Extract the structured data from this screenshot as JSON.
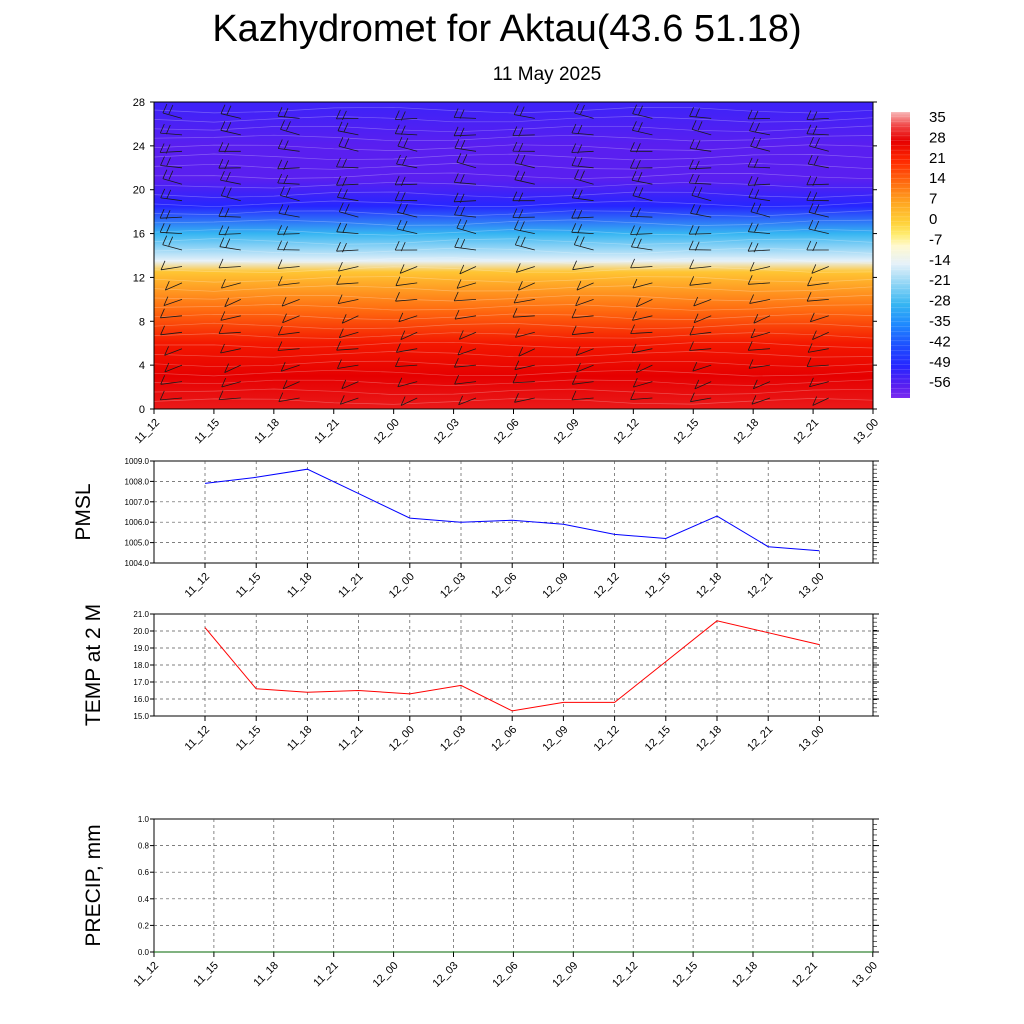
{
  "title": "Kazhydromet for Aktau(43.6 51.18)",
  "subtitle": "11 May 2025",
  "time_labels": [
    "11_12",
    "11_15",
    "11_18",
    "11_21",
    "12_00",
    "12_03",
    "12_06",
    "12_09",
    "12_12",
    "12_15",
    "12_18",
    "12_21",
    "13_00"
  ],
  "chart_data": [
    {
      "id": "cross-section",
      "type": "heatmap",
      "title": "Kazhydromet for Aktau(43.6 51.18)",
      "subtitle": "11 May 2025",
      "x": [
        "11_12",
        "11_15",
        "11_18",
        "11_21",
        "12_00",
        "12_03",
        "12_06",
        "12_09",
        "12_12",
        "12_15",
        "12_18",
        "12_21",
        "13_00"
      ],
      "ylim": [
        0,
        28
      ],
      "yticks": [
        0,
        4,
        8,
        12,
        16,
        20,
        24,
        28
      ],
      "colorbar_labels": [
        "35",
        "28",
        "21",
        "14",
        "7",
        "0",
        "-7",
        "-14",
        "-21",
        "-28",
        "-35",
        "-42",
        "-49",
        "-56"
      ],
      "colorbar_range": [
        -60,
        38
      ],
      "temperature_by_level": [
        {
          "level": 0,
          "value": 30
        },
        {
          "level": 3,
          "value": 28
        },
        {
          "level": 6,
          "value": 24
        },
        {
          "level": 9,
          "value": 14
        },
        {
          "level": 12.5,
          "value": 2
        },
        {
          "level": 13.5,
          "value": -14
        },
        {
          "level": 16,
          "value": -28
        },
        {
          "level": 18.5,
          "value": -49
        },
        {
          "level": 21,
          "value": -56
        },
        {
          "level": 24,
          "value": -56
        },
        {
          "level": 28,
          "value": -52
        }
      ],
      "overlay": "wind barbs",
      "grid": false
    },
    {
      "id": "pmsl",
      "type": "line",
      "ylabel": "PMSL",
      "categories": [
        "11_12",
        "11_15",
        "11_18",
        "11_21",
        "12_00",
        "12_03",
        "12_06",
        "12_09",
        "12_12",
        "12_15",
        "12_18",
        "12_21",
        "13_00"
      ],
      "values": [
        1007.9,
        1008.2,
        1008.6,
        1007.4,
        1006.2,
        1006.0,
        1006.1,
        1005.9,
        1005.4,
        1005.2,
        1006.3,
        1004.8,
        1004.6
      ],
      "ylim": [
        1004.0,
        1009.0
      ],
      "yticks": [
        "1004.0",
        "1005.0",
        "1006.0",
        "1007.0",
        "1008.0",
        "1009.0"
      ],
      "color": "#0000ff",
      "grid": true
    },
    {
      "id": "temp2m",
      "type": "line",
      "ylabel": "TEMP at 2 M",
      "categories": [
        "11_12",
        "11_15",
        "11_18",
        "11_21",
        "12_00",
        "12_03",
        "12_06",
        "12_09",
        "12_12",
        "12_15",
        "12_18",
        "12_21",
        "13_00"
      ],
      "values": [
        20.2,
        16.6,
        16.4,
        16.5,
        16.3,
        16.8,
        15.3,
        15.8,
        15.8,
        18.2,
        20.6,
        19.9,
        19.2
      ],
      "ylim": [
        15.0,
        21.0
      ],
      "yticks": [
        "15.0",
        "16.0",
        "17.0",
        "18.0",
        "19.0",
        "20.0",
        "21.0"
      ],
      "color": "#ff0000",
      "grid": true
    },
    {
      "id": "precip",
      "type": "line",
      "ylabel": "PRECIP, mm",
      "categories": [
        "11_12",
        "11_15",
        "11_18",
        "11_21",
        "12_00",
        "12_03",
        "12_06",
        "12_09",
        "12_12",
        "12_15",
        "12_18",
        "12_21",
        "13_00"
      ],
      "values": [
        0,
        0,
        0,
        0,
        0,
        0,
        0,
        0,
        0,
        0,
        0,
        0,
        0
      ],
      "ylim": [
        0.0,
        1.0
      ],
      "yticks": [
        "0.0",
        "0.2",
        "0.4",
        "0.6",
        "0.8",
        "1.0"
      ],
      "color": "#006400",
      "grid": true
    }
  ]
}
